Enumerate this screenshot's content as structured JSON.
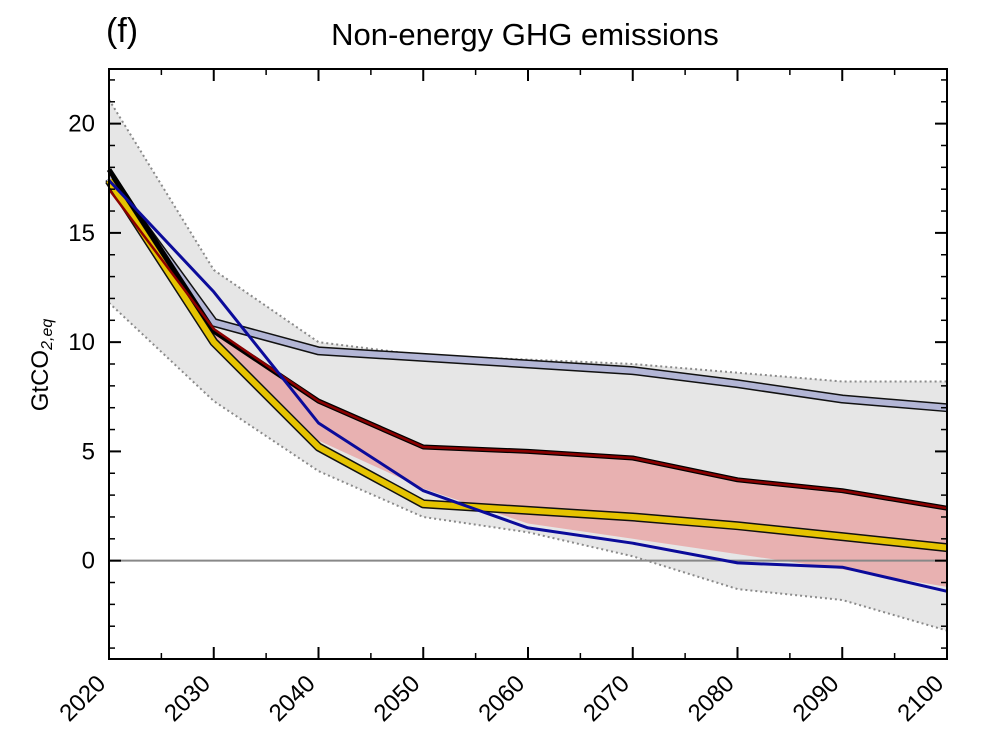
{
  "panel_label": "(f)",
  "chart_data": {
    "type": "line",
    "title": "Non-energy GHG emissions",
    "ylabel": {
      "main": "GtCO",
      "sub": "2,eq"
    },
    "xlabel": "",
    "xlim": [
      2020,
      2100
    ],
    "ylim": [
      -4.5,
      22.5
    ],
    "xticks": [
      2020,
      2030,
      2040,
      2050,
      2060,
      2070,
      2080,
      2090,
      2100
    ],
    "yticks": [
      0,
      5,
      10,
      15,
      20
    ],
    "legend": "none",
    "grid": false,
    "x": [
      2020,
      2030,
      2040,
      2050,
      2060,
      2070,
      2080,
      2090,
      2100
    ],
    "range_band": {
      "color": "#e6e6e6",
      "lower": [
        11.8,
        7.3,
        4.1,
        2.0,
        1.3,
        0.2,
        -1.3,
        -1.8,
        -3.2
      ],
      "upper": [
        21.1,
        13.3,
        10.0,
        9.4,
        9.2,
        9.0,
        8.6,
        8.2,
        8.2
      ]
    },
    "shaded_band": {
      "color": "#e8b1b1",
      "lower": [
        17.0,
        10.3,
        5.5,
        3.3,
        1.7,
        1.0,
        0.3,
        -0.4,
        -1.2
      ],
      "upper": [
        17.9,
        10.5,
        7.3,
        5.2,
        5.0,
        4.7,
        3.7,
        3.2,
        2.4
      ]
    },
    "zero_line": {
      "y": 0,
      "color": "#888888"
    },
    "series": [
      {
        "color": "#b3b6d6",
        "edge": "#111111",
        "width": 6,
        "values": [
          17.5,
          10.9,
          9.6,
          9.3,
          9.0,
          8.7,
          8.1,
          7.4,
          7.0
        ]
      },
      {
        "color": "#e5c300",
        "edge": "#111111",
        "width": 6,
        "values": [
          17.4,
          10.0,
          5.2,
          2.6,
          2.3,
          2.0,
          1.6,
          1.1,
          0.6
        ]
      },
      {
        "color": "#000000",
        "width": 5,
        "values": [
          17.9,
          10.5,
          7.3,
          5.2,
          5.0,
          4.7,
          3.7,
          3.2,
          2.4
        ]
      },
      {
        "color": "#8b0000",
        "width": 2.5,
        "values": [
          17.0,
          10.6,
          7.3,
          5.2,
          5.0,
          4.7,
          3.7,
          3.2,
          2.4
        ]
      },
      {
        "color": "#0b0b9a",
        "width": 3,
        "values": [
          17.4,
          12.3,
          6.3,
          3.2,
          1.5,
          0.8,
          -0.1,
          -0.3,
          -1.4
        ]
      }
    ]
  }
}
